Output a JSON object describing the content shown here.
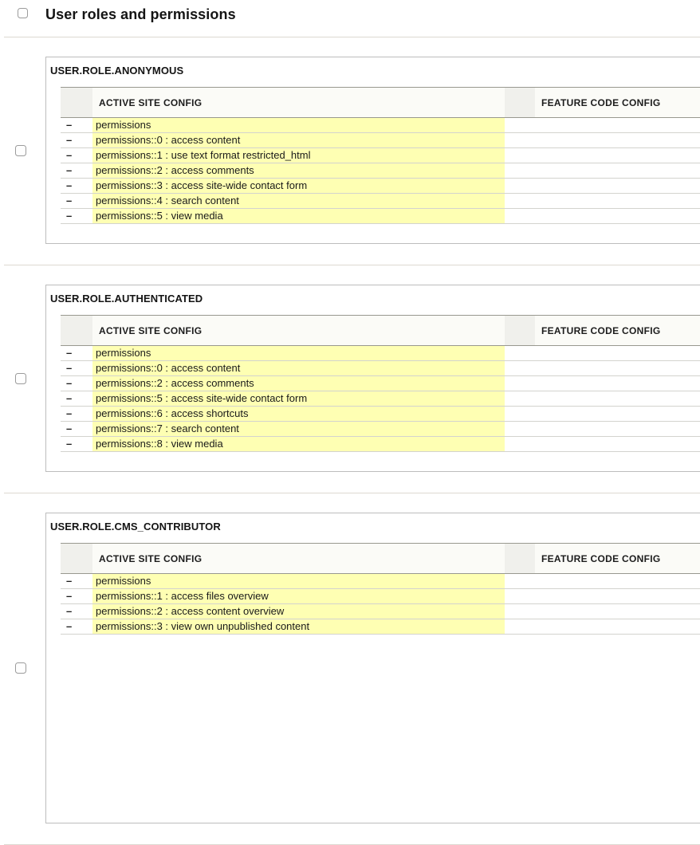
{
  "page": {
    "title": "User roles and permissions",
    "select_all_checked": false
  },
  "columns": {
    "active": "ACTIVE SITE CONFIG",
    "feature": "FEATURE CODE CONFIG"
  },
  "diff": {
    "removed_marker": "–"
  },
  "sections": [
    {
      "name": "USER.ROLE.ANONYMOUS",
      "checked": false,
      "active_rows": [
        "permissions",
        "permissions::0 : access content",
        "permissions::1 : use text format restricted_html",
        "permissions::2 : access comments",
        "permissions::3 : access site-wide contact form",
        "permissions::4 : search content",
        "permissions::5 : view media"
      ]
    },
    {
      "name": "USER.ROLE.AUTHENTICATED",
      "checked": false,
      "active_rows": [
        "permissions",
        "permissions::0 : access content",
        "permissions::2 : access comments",
        "permissions::5 : access site-wide contact form",
        "permissions::6 : access shortcuts",
        "permissions::7 : search content",
        "permissions::8 : view media"
      ]
    },
    {
      "name": "USER.ROLE.CMS_CONTRIBUTOR",
      "checked": false,
      "active_rows": [
        "permissions",
        "permissions::1 : access files overview",
        "permissions::2 : access content overview",
        "permissions::3 : view own unpublished content"
      ]
    }
  ],
  "colors": {
    "highlight_yellow": "#feffb3",
    "marker_header_grey": "#f0f0ec",
    "panel_border": "#bdbdbd",
    "divider": "#ddd9d1",
    "header_border": "#98988f",
    "row_border": "#d3d3ce"
  }
}
